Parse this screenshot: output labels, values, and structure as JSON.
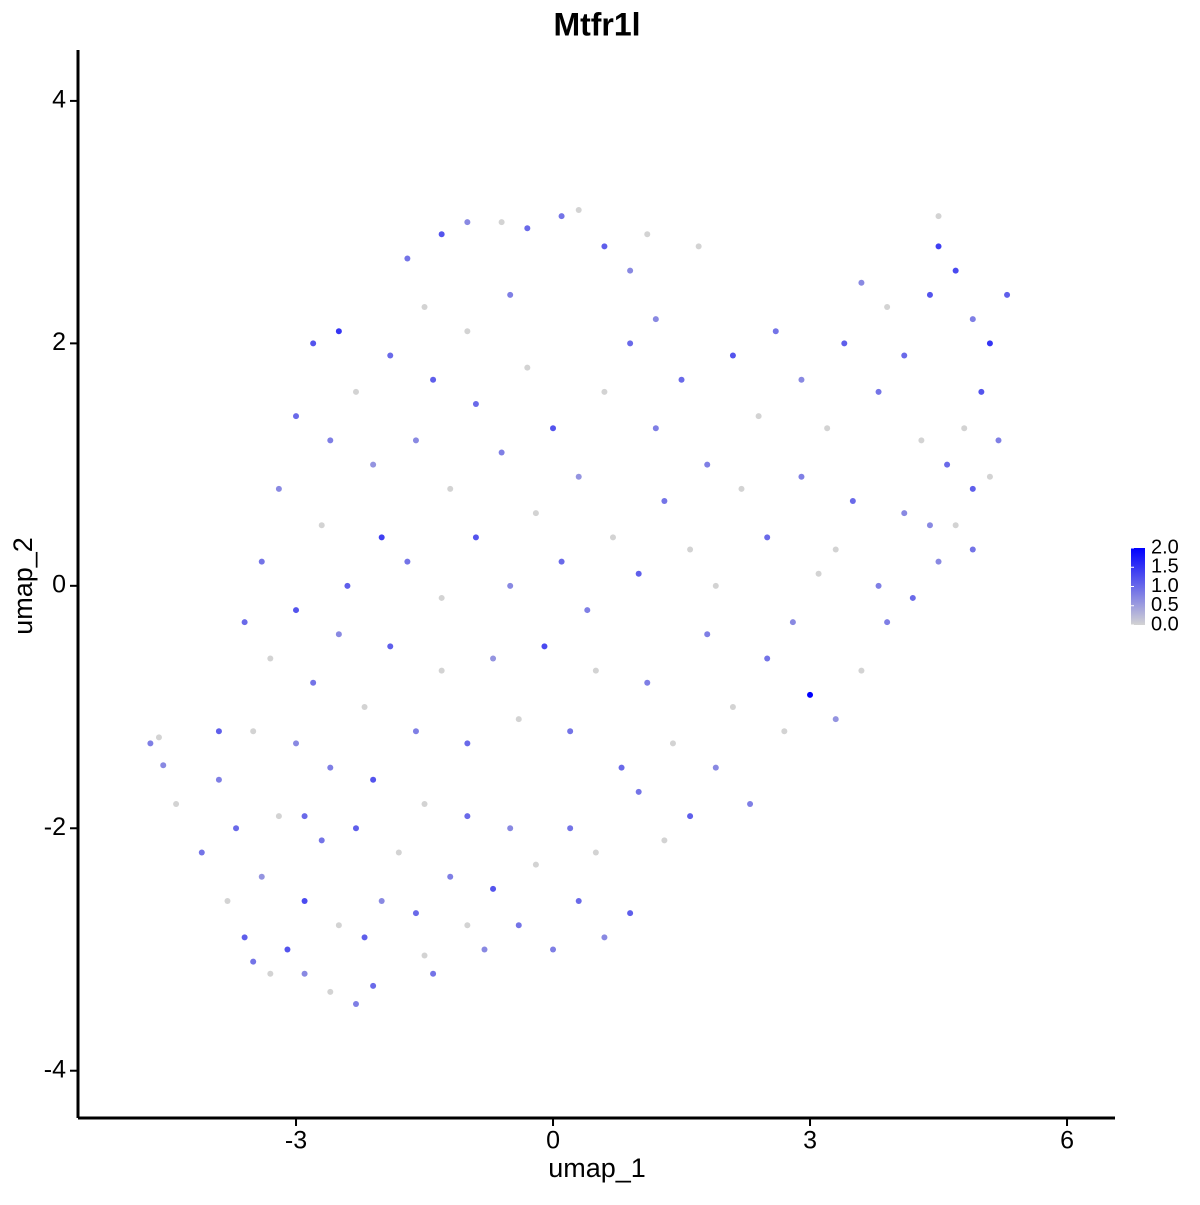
{
  "chart_data": {
    "type": "scatter",
    "title": "Mtfr1l",
    "xlabel": "umap_1",
    "ylabel": "umap_2",
    "x": [
      -4.7,
      -4.6,
      -4.55,
      -4.4,
      -4.1,
      -3.9,
      -3.8,
      -3.6,
      -3.5,
      -3.3,
      -3.1,
      -2.9,
      -2.6,
      -2.3,
      -2.1,
      -1.4,
      -1.5,
      -3.7,
      -3.4,
      -3.2,
      -2.9,
      -2.7,
      -2.5,
      -2.3,
      -2.0,
      -1.8,
      -1.6,
      -1.2,
      -1.0,
      -0.7,
      -0.4,
      -0.2,
      0.0,
      0.3,
      0.6,
      0.9,
      0.5,
      0.2,
      -0.5,
      -1.0,
      -1.5,
      -2.1,
      -2.6,
      -3.0,
      -3.5,
      -3.9,
      -3.6,
      -3.3,
      -3.0,
      -2.8,
      -2.5,
      -2.2,
      -1.9,
      -1.6,
      -1.3,
      -1.0,
      -0.7,
      -0.4,
      -0.1,
      0.2,
      0.5,
      0.8,
      1.1,
      1.4,
      1.6,
      1.9,
      1.3,
      1.0,
      2.3,
      2.1,
      2.5,
      2.7,
      3.0,
      3.3,
      3.6,
      3.9,
      4.2,
      4.5,
      4.7,
      4.9,
      5.1,
      2.8,
      3.1,
      -3.4,
      -3.2,
      -3.0,
      -2.8,
      -2.5,
      -2.3,
      -2.6,
      -2.7,
      -2.4,
      -2.0,
      -2.1,
      -1.9,
      -1.7,
      -1.5,
      -1.3,
      -1.0,
      -0.6,
      -0.3,
      0.1,
      0.3,
      0.6,
      0.9,
      1.1,
      -0.5,
      -1.0,
      -1.4,
      -1.6,
      -1.2,
      -0.9,
      -0.6,
      -0.3,
      0.0,
      0.3,
      0.6,
      0.9,
      1.2,
      -1.7,
      -1.3,
      -0.9,
      -0.5,
      -0.2,
      0.1,
      0.4,
      0.7,
      1.0,
      1.3,
      1.6,
      1.8,
      1.5,
      2.1,
      2.4,
      2.6,
      2.9,
      2.2,
      2.5,
      2.9,
      3.2,
      3.4,
      3.6,
      3.9,
      3.8,
      3.5,
      3.3,
      3.8,
      4.1,
      4.3,
      4.1,
      4.4,
      4.5,
      4.5,
      4.7,
      4.9,
      5.1,
      5.3,
      5.0,
      4.8,
      4.6,
      4.4,
      5.2,
      4.9,
      1.7,
      1.2,
      -2.9,
      -2.2,
      -0.8,
      1.8,
      1.9
    ],
    "y": [
      -1.3,
      -1.25,
      -1.48,
      -1.8,
      -2.2,
      -1.6,
      -2.6,
      -2.9,
      -3.1,
      -3.2,
      -3.0,
      -3.2,
      -3.35,
      -3.45,
      -3.3,
      -3.2,
      -3.05,
      -2.0,
      -2.4,
      -1.9,
      -2.6,
      -2.1,
      -2.8,
      -2.0,
      -2.6,
      -2.2,
      -2.7,
      -2.4,
      -2.8,
      -2.5,
      -2.8,
      -2.3,
      -3.0,
      -2.6,
      -2.9,
      -2.7,
      -2.2,
      -2.0,
      -2.0,
      -1.9,
      -1.8,
      -1.6,
      -1.5,
      -1.3,
      -1.2,
      -1.2,
      -0.3,
      -0.6,
      -0.2,
      -0.8,
      -0.4,
      -1.0,
      -0.5,
      -1.2,
      -0.7,
      -1.3,
      -0.6,
      -1.1,
      -0.5,
      -1.2,
      -0.7,
      -1.5,
      -0.8,
      -1.3,
      -1.9,
      -1.5,
      -2.1,
      -1.7,
      -1.8,
      -1.0,
      -0.6,
      -1.2,
      -0.9,
      -1.1,
      -0.7,
      -0.3,
      -0.1,
      0.2,
      0.5,
      0.8,
      0.9,
      -0.3,
      0.1,
      0.2,
      0.8,
      1.4,
      2.0,
      2.1,
      1.6,
      1.2,
      0.5,
      0.0,
      0.4,
      1.0,
      1.9,
      2.7,
      2.3,
      2.9,
      3.0,
      3.0,
      2.95,
      3.05,
      3.1,
      2.8,
      2.6,
      2.9,
      2.4,
      2.1,
      1.7,
      1.2,
      0.8,
      1.5,
      1.1,
      1.8,
      1.3,
      0.9,
      1.6,
      2.0,
      1.3,
      0.2,
      -0.1,
      0.4,
      0.0,
      0.6,
      0.2,
      -0.2,
      0.4,
      0.1,
      0.7,
      0.3,
      1.0,
      1.7,
      1.9,
      1.4,
      2.1,
      1.7,
      0.8,
      0.4,
      0.9,
      1.3,
      2.0,
      2.5,
      2.3,
      1.6,
      0.7,
      0.3,
      0.0,
      0.6,
      1.2,
      1.9,
      2.4,
      3.05,
      2.8,
      2.6,
      2.2,
      2.0,
      2.4,
      1.6,
      1.3,
      1.0,
      0.5,
      1.2,
      0.3,
      2.8,
      2.2,
      -1.9,
      -2.9,
      -3.0,
      -0.4,
      0.0
    ],
    "values": [
      0.8,
      0,
      0.7,
      0,
      0.9,
      0.8,
      0,
      1.1,
      0.9,
      0,
      1.2,
      0.7,
      0,
      0.8,
      1.0,
      0.9,
      0,
      1.0,
      0.6,
      0,
      1.3,
      0.9,
      0,
      1.1,
      0.7,
      0,
      1.0,
      0.8,
      0,
      1.2,
      0.9,
      0,
      0.8,
      1.0,
      0.7,
      1.1,
      0,
      0.9,
      0.7,
      1.0,
      0,
      1.2,
      0.8,
      0.7,
      0,
      1.1,
      1.0,
      0,
      1.2,
      0.9,
      0.7,
      0,
      1.1,
      0.8,
      0,
      1.0,
      0.6,
      0,
      1.3,
      0.9,
      0,
      1.0,
      0.8,
      0,
      1.1,
      0.7,
      0,
      0.9,
      0.8,
      0,
      0.9,
      0,
      2.0,
      0.6,
      0,
      0.8,
      1.0,
      0.7,
      0,
      1.1,
      0,
      0.7,
      0,
      0.9,
      0.7,
      1.0,
      1.2,
      1.5,
      0,
      0.8,
      0,
      1.1,
      1.4,
      0.6,
      1.0,
      0.9,
      0,
      1.2,
      0.7,
      0,
      1.0,
      0.9,
      0,
      1.1,
      0.7,
      0,
      0.8,
      0,
      1.1,
      0.7,
      0,
      1.0,
      0.8,
      0,
      1.2,
      0.6,
      0,
      1.0,
      0.8,
      0.9,
      0,
      1.2,
      0.7,
      0,
      1.0,
      0.8,
      0,
      1.1,
      0.9,
      0,
      0.8,
      1.0,
      1.2,
      0,
      0.9,
      0.7,
      0,
      1.0,
      0.8,
      0,
      1.1,
      0.7,
      0,
      0.9,
      1.0,
      0,
      0.8,
      0.7,
      0,
      1.0,
      1.2,
      0,
      1.4,
      1.3,
      0.8,
      1.5,
      1.1,
      1.2,
      0,
      1.0,
      0.7,
      0.8,
      0.9,
      0,
      0.7,
      1.0,
      1.1,
      0.7,
      0.8,
      0
    ],
    "xlim": [
      -5.545,
      6.56
    ],
    "ylim": [
      -4.39,
      4.42
    ],
    "xticks": [
      -3,
      0,
      3,
      6
    ],
    "yticks": [
      -4,
      -2,
      0,
      2,
      4
    ],
    "color_low": "#d3d3d3",
    "color_high": "#0000ff",
    "clim": [
      0,
      2.0
    ],
    "cticks": [
      {
        "value": 0,
        "label": "0.0"
      },
      0.5,
      {
        "value": 1,
        "label": "1.0"
      },
      1.5,
      {
        "value": 2,
        "label": "2.0"
      }
    ]
  }
}
